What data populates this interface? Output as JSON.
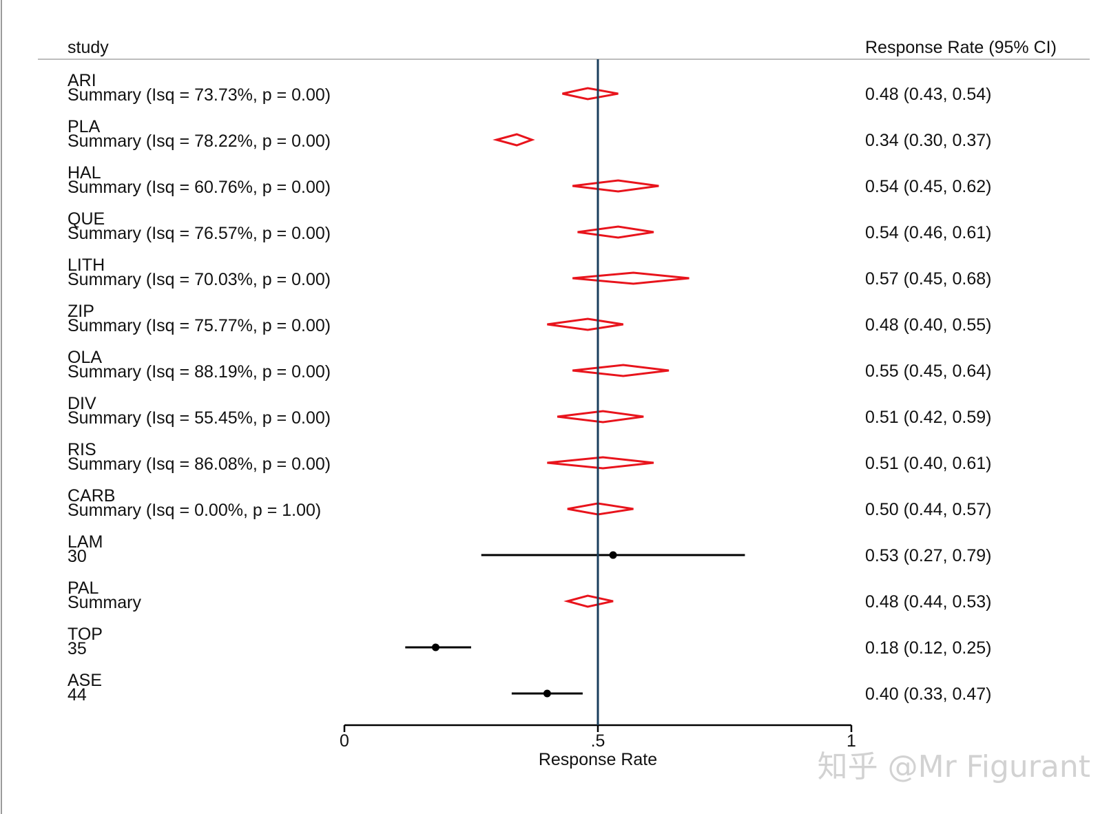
{
  "chart_data": {
    "type": "forest",
    "header": {
      "study_label": "study",
      "estimate_label": "Response Rate (95% CI)"
    },
    "xlabel": "Response Rate",
    "xlim": [
      0,
      1
    ],
    "ticks": [
      {
        "value": 0,
        "label": "0"
      },
      {
        "value": 0.5,
        "label": ".5"
      },
      {
        "value": 1,
        "label": "1"
      }
    ],
    "reference_line": 0.5,
    "rows": [
      {
        "group": "ARI",
        "label": "Summary (Isq = 73.73%, p = 0.00)",
        "kind": "summary",
        "est": 0.48,
        "lo": 0.43,
        "hi": 0.54,
        "text": "0.48 (0.43, 0.54)"
      },
      {
        "group": "PLA",
        "label": "Summary (Isq = 78.22%, p = 0.00)",
        "kind": "summary",
        "est": 0.34,
        "lo": 0.3,
        "hi": 0.37,
        "text": "0.34 (0.30, 0.37)"
      },
      {
        "group": "HAL",
        "label": "Summary (Isq = 60.76%, p = 0.00)",
        "kind": "summary",
        "est": 0.54,
        "lo": 0.45,
        "hi": 0.62,
        "text": "0.54 (0.45, 0.62)"
      },
      {
        "group": "QUE",
        "label": "Summary (Isq = 76.57%, p = 0.00)",
        "kind": "summary",
        "est": 0.54,
        "lo": 0.46,
        "hi": 0.61,
        "text": "0.54 (0.46, 0.61)"
      },
      {
        "group": "LITH",
        "label": "Summary (Isq = 70.03%, p = 0.00)",
        "kind": "summary",
        "est": 0.57,
        "lo": 0.45,
        "hi": 0.68,
        "text": "0.57 (0.45, 0.68)"
      },
      {
        "group": "ZIP",
        "label": "Summary (Isq = 75.77%, p = 0.00)",
        "kind": "summary",
        "est": 0.48,
        "lo": 0.4,
        "hi": 0.55,
        "text": "0.48 (0.40, 0.55)"
      },
      {
        "group": "OLA",
        "label": "Summary (Isq = 88.19%, p = 0.00)",
        "kind": "summary",
        "est": 0.55,
        "lo": 0.45,
        "hi": 0.64,
        "text": "0.55 (0.45, 0.64)"
      },
      {
        "group": "DIV",
        "label": "Summary (Isq = 55.45%, p = 0.00)",
        "kind": "summary",
        "est": 0.51,
        "lo": 0.42,
        "hi": 0.59,
        "text": "0.51 (0.42, 0.59)"
      },
      {
        "group": "RIS",
        "label": "Summary (Isq = 86.08%, p = 0.00)",
        "kind": "summary",
        "est": 0.51,
        "lo": 0.4,
        "hi": 0.61,
        "text": "0.51 (0.40, 0.61)"
      },
      {
        "group": "CARB",
        "label": "Summary (Isq = 0.00%, p = 1.00)",
        "kind": "summary",
        "est": 0.5,
        "lo": 0.44,
        "hi": 0.57,
        "text": "0.50 (0.44, 0.57)"
      },
      {
        "group": "LAM",
        "label": "30",
        "kind": "study",
        "est": 0.53,
        "lo": 0.27,
        "hi": 0.79,
        "text": "0.53 (0.27, 0.79)"
      },
      {
        "group": "PAL",
        "label": "Summary",
        "kind": "summary",
        "est": 0.48,
        "lo": 0.44,
        "hi": 0.53,
        "text": "0.48 (0.44, 0.53)"
      },
      {
        "group": "TOP",
        "label": "35",
        "kind": "study",
        "est": 0.18,
        "lo": 0.12,
        "hi": 0.25,
        "text": "0.18 (0.12, 0.25)"
      },
      {
        "group": "ASE",
        "label": "44",
        "kind": "study",
        "est": 0.4,
        "lo": 0.33,
        "hi": 0.47,
        "text": "0.40 (0.33, 0.47)"
      }
    ],
    "colors": {
      "summary": "#e8141c",
      "study": "#000000",
      "reference": "#1a3e5c",
      "divider": "#bdbdbd"
    }
  },
  "watermark": "知乎 @Mr Figurant"
}
